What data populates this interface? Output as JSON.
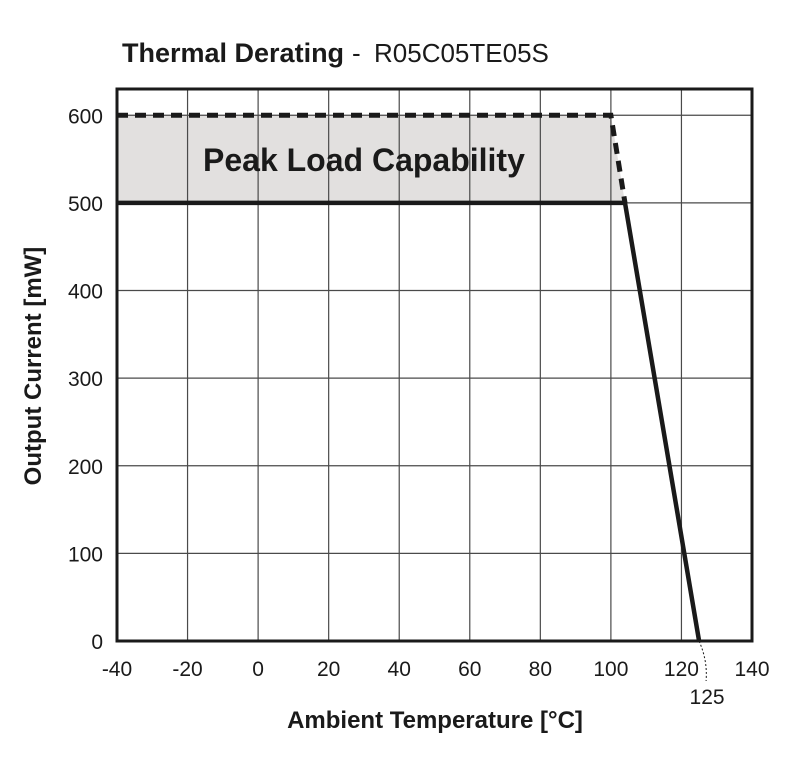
{
  "chart_data": {
    "type": "line",
    "title": "Thermal Derating",
    "subtitle": "R05C05TE05S",
    "title_separator": "-",
    "xlabel": "Ambient Temperature [°C]",
    "ylabel": "Output Current [mW]",
    "xlim": [
      -40,
      140
    ],
    "ylim": [
      0,
      630
    ],
    "x_ticks": [
      -40,
      -20,
      0,
      20,
      40,
      60,
      80,
      100,
      120,
      140
    ],
    "y_ticks": [
      0,
      100,
      200,
      300,
      400,
      500,
      600
    ],
    "extra_x_annotation": {
      "value": 125,
      "label": "125"
    },
    "grid": true,
    "region_label": "Peak Load Capability",
    "series": [
      {
        "style": "solid",
        "x": [
          -40,
          104,
          125
        ],
        "y": [
          500,
          500,
          0
        ]
      },
      {
        "style": "dashed",
        "x": [
          -40,
          100,
          104
        ],
        "y": [
          600,
          600,
          500
        ]
      }
    ],
    "shaded_region": {
      "x": [
        -40,
        100,
        104,
        -40
      ],
      "y": [
        600,
        600,
        500,
        500
      ]
    },
    "colors": {
      "line": "#1a1a1a",
      "grid": "#4a4a4a",
      "shade": "#e2e0df"
    }
  }
}
